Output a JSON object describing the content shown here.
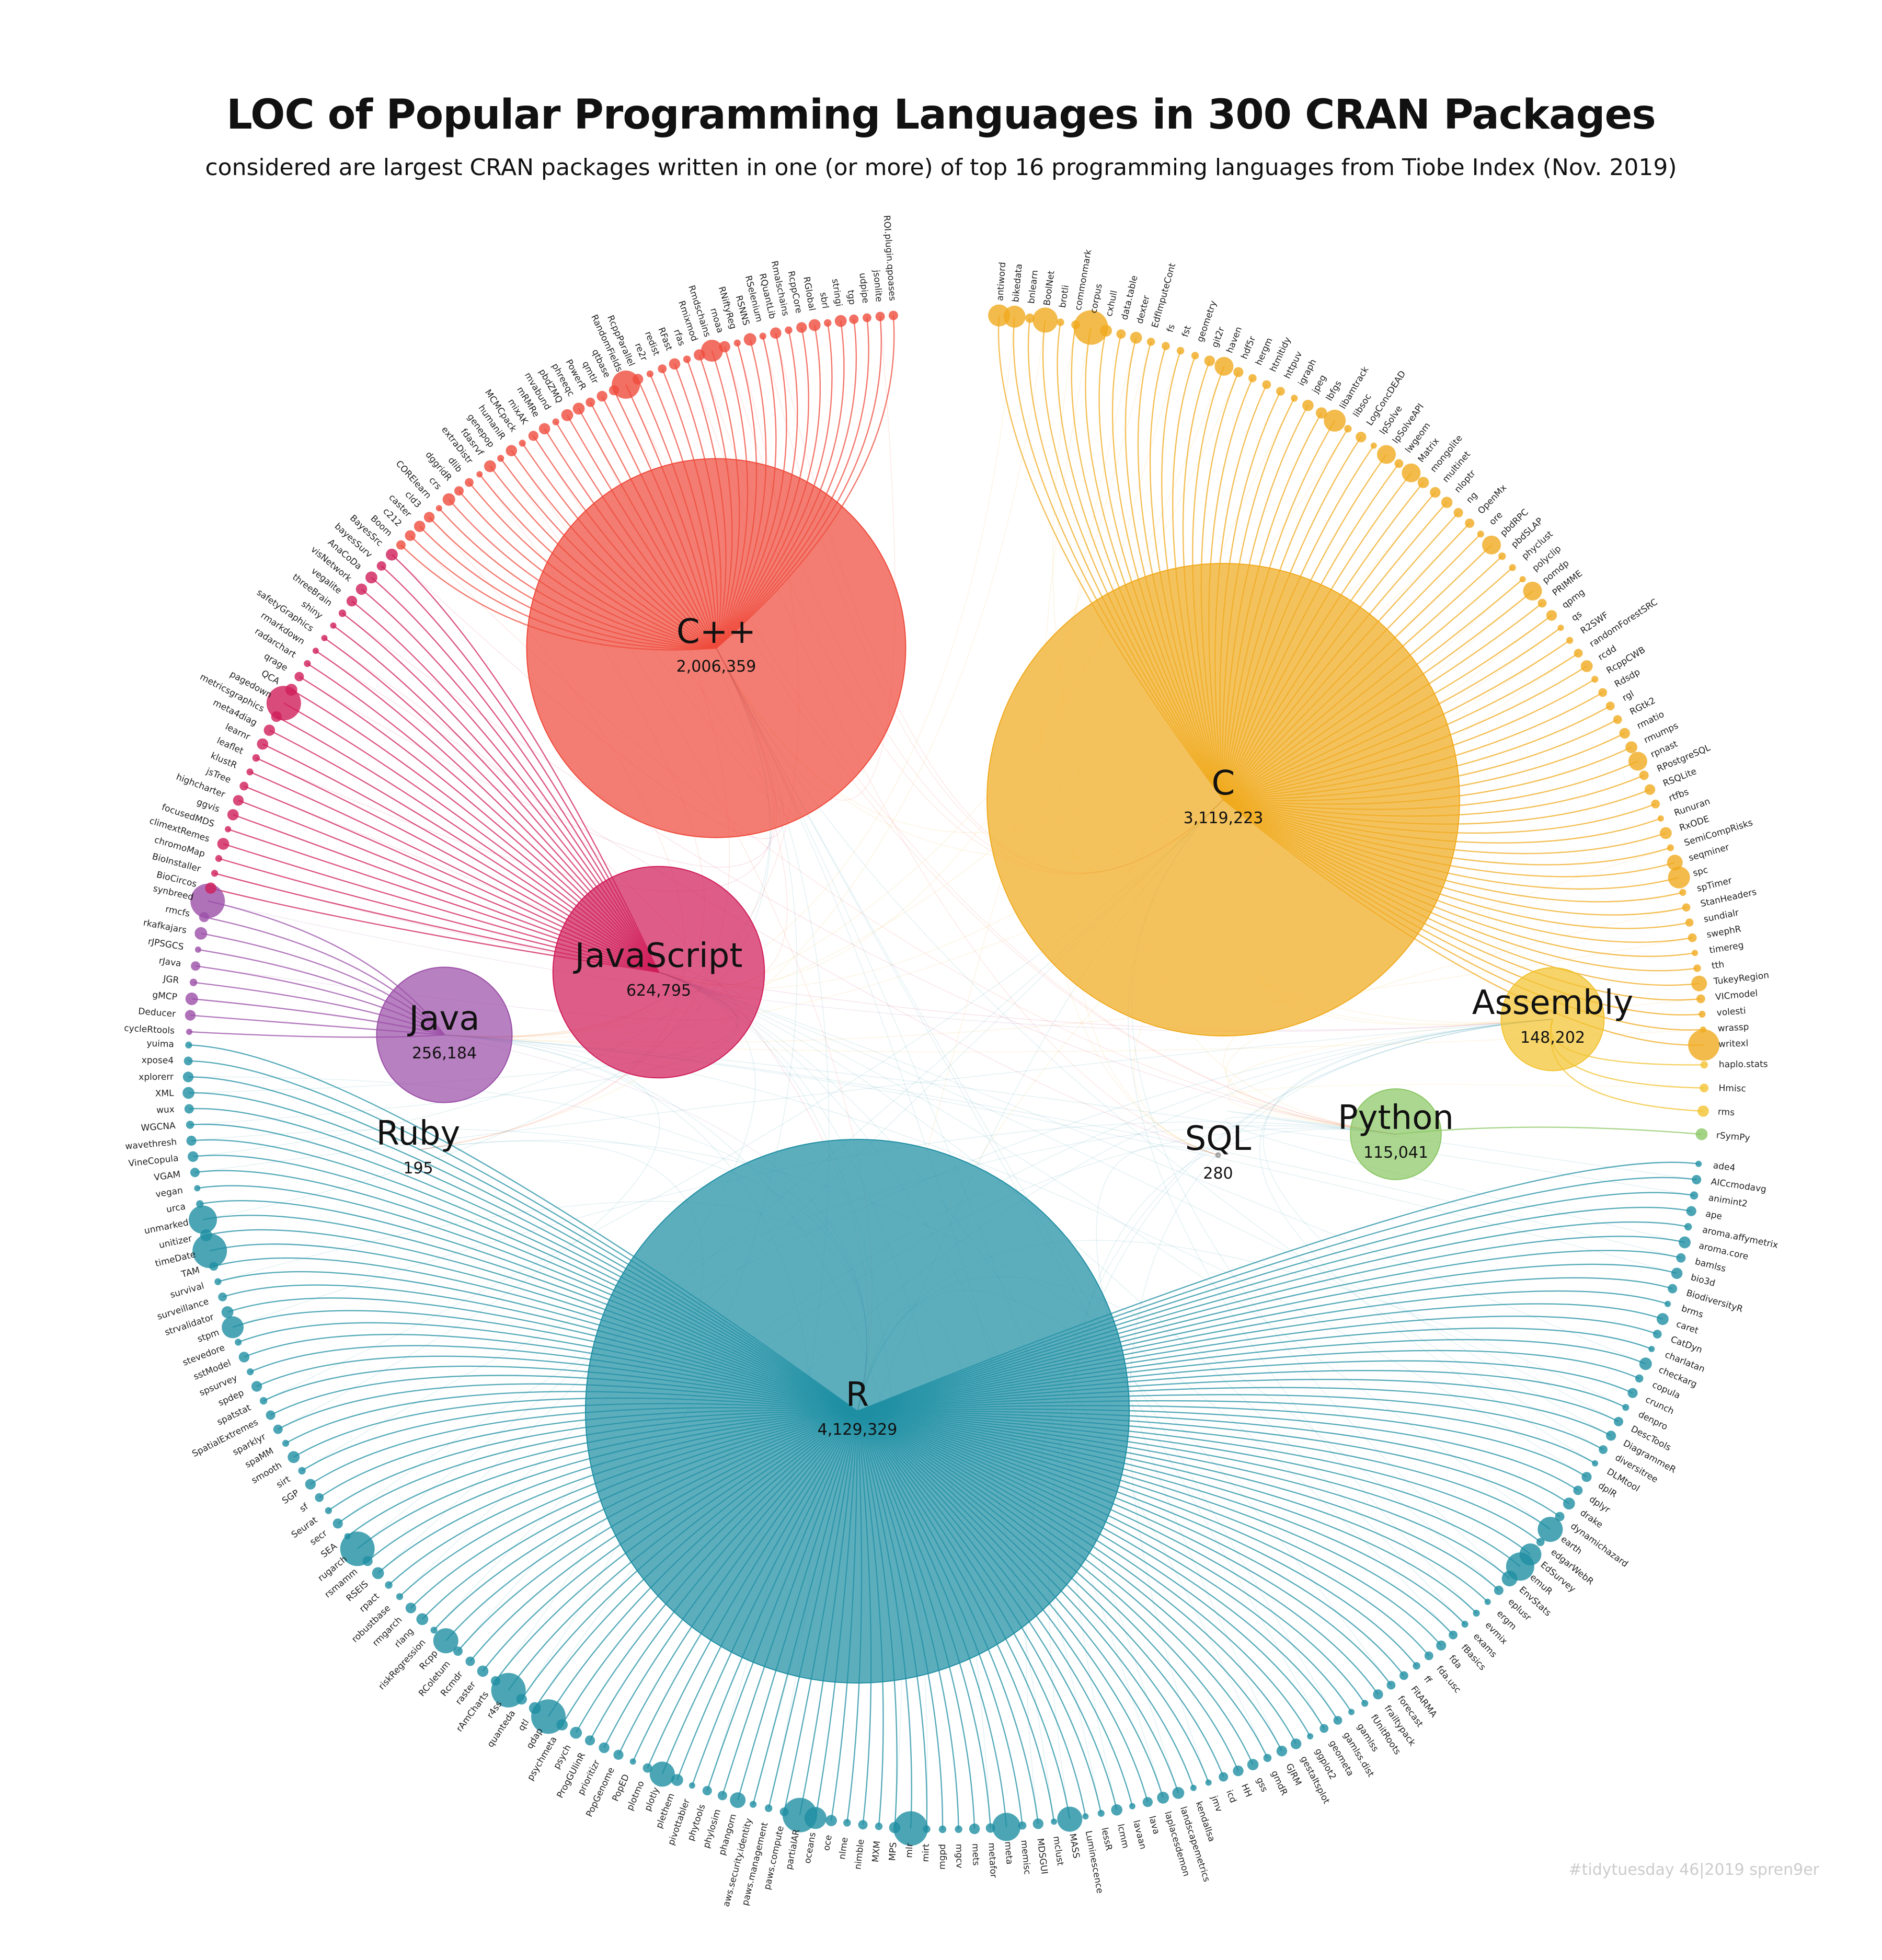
{
  "header": {
    "title": "LOC of Popular Programming Languages in 300 CRAN Packages",
    "subtitle": "considered are largest CRAN packages written in one (or more) of top 16 programming languages from Tiobe Index (Nov. 2019)"
  },
  "credit": "#tidytuesday 46|2019 spren9er",
  "colors": {
    "C": "#F0AA1E",
    "C++": "#EF4B3C",
    "JavaScript": "#D01E5A",
    "Java": "#9B4FA8",
    "R": "#1F8FA3",
    "Assembly": "#F2C331",
    "Python": "#8CC865"
  },
  "languages": [
    {
      "name": "C++",
      "loc": "2,006,359",
      "value": 2006359
    },
    {
      "name": "C",
      "loc": "3,119,223",
      "value": 3119223
    },
    {
      "name": "JavaScript",
      "loc": "624,795",
      "value": 624795
    },
    {
      "name": "Java",
      "loc": "256,184",
      "value": 256184
    },
    {
      "name": "R",
      "loc": "4,129,329",
      "value": 4129329
    },
    {
      "name": "Assembly",
      "loc": "148,202",
      "value": 148202
    },
    {
      "name": "Python",
      "loc": "115,041",
      "value": 115041
    },
    {
      "name": "Ruby",
      "loc": "195",
      "value": 195
    },
    {
      "name": "SQL",
      "loc": "280",
      "value": 280
    }
  ],
  "packages": {
    "C": [
      "antiword",
      "bikedata",
      "bnlearn",
      "BoolNet",
      "brotli",
      "commonmark",
      "corpus",
      "cxhull",
      "data.table",
      "dexter",
      "EdfImputeCont",
      "fs",
      "fst",
      "geometry",
      "git2r",
      "haven",
      "hdf5r",
      "hergm",
      "htmltidy",
      "httpuv",
      "igraph",
      "jpeg",
      "lbfgs",
      "libamtrack",
      "libsoc",
      "LogConcDEAD",
      "lpSolve",
      "lpSolveAPI",
      "lwgeom",
      "Matrix",
      "mongolite",
      "multinet",
      "nloptr",
      "ng",
      "OpenMx",
      "ore",
      "pbdRPC",
      "pbdSLAP",
      "phyclust",
      "polyclip",
      "pomdp",
      "PRIMME",
      "qpmg",
      "qs",
      "R2SWF",
      "randomForestSRC",
      "rcdd",
      "RcppCWB",
      "Rdsdp",
      "rgl",
      "RGtk2",
      "rmatio",
      "rmumps",
      "rpnast",
      "RPostgreSQL",
      "RSQLite",
      "rtfbs",
      "Runuran",
      "RxODE",
      "SemiCompRisks",
      "seqminer",
      "spc",
      "spTimer",
      "StanHeaders",
      "sundialr",
      "swephR",
      "timereg",
      "tth",
      "TukeyRegion",
      "VICmodel",
      "volesti",
      "wrassp",
      "writexl"
    ],
    "Assembly": [
      "haplo.stats",
      "Hmisc",
      "rms"
    ],
    "Python": [
      "rSymPy"
    ],
    "R": [
      "ade4",
      "AICcmodavg",
      "animint2",
      "ape",
      "aroma.affymetrix",
      "aroma.core",
      "bamlss",
      "bio3d",
      "BiodiversityR",
      "brms",
      "caret",
      "CatDyn",
      "charlatan",
      "checkarg",
      "copula",
      "crunch",
      "denpro",
      "DescTools",
      "DiagrammeR",
      "diversitree",
      "DLMtool",
      "dplR",
      "dplyr",
      "drake",
      "dynamichazard",
      "earth",
      "edgarWebR",
      "EdSurvey",
      "emuR",
      "EnvStats",
      "eplusr",
      "ergm",
      "evmix",
      "exams",
      "fBasics",
      "fda",
      "fda.usc",
      "ff",
      "FitARMA",
      "forecast",
      "frailtypack",
      "fUnitRoots",
      "gamlss",
      "gamlss.dist",
      "geometa",
      "ggplot2",
      "gestaltsplot",
      "GJRM",
      "gmdR",
      "gss",
      "HH",
      "icd",
      "jmv",
      "kendallsa",
      "landscapemetrics",
      "laplacesdemon",
      "lava",
      "lavaan",
      "lcmm",
      "lessR",
      "Luminescence",
      "MASS",
      "mclust",
      "MDSGUI",
      "memisc",
      "meta",
      "metafor",
      "mets",
      "mgcv",
      "mgpd",
      "mirt",
      "mlr",
      "MPS",
      "MXM",
      "nimble",
      "nlme",
      "oce",
      "oceans",
      "partialAR",
      "paws.compute",
      "paws.management",
      "aws.security.identity",
      "phangorn",
      "phylosim",
      "phytools",
      "pivottabler",
      "plethem",
      "plotly",
      "plotmo",
      "PopED",
      "PopGenome",
      "prioritizr",
      "ProgGUIinR",
      "psych",
      "psychmeta",
      "qdap",
      "qtl",
      "quanteda",
      "r4ss",
      "rAmCharts",
      "raster",
      "Rcmdr",
      "RColetum",
      "Rcpp",
      "riskRegression",
      "rlang",
      "rmgarch",
      "robustbase",
      "rpact",
      "RSEIS",
      "rsmamm",
      "rugarch",
      "SEA",
      "secr",
      "Seurat",
      "sf",
      "SGP",
      "sirt",
      "smooth",
      "spaMM",
      "sparklyr",
      "SpatialExtremes",
      "spatstat",
      "spdep",
      "spsurvey",
      "sstModel",
      "stevedore",
      "stpm",
      "strvalidator",
      "surveillance",
      "survival",
      "TAM",
      "timeDate",
      "unitizer",
      "unmarked",
      "urca",
      "vegan",
      "VGAM",
      "VineCopula",
      "wavethresh",
      "WGCNA",
      "wux",
      "XML",
      "xplorerr",
      "xpose4",
      "yuima"
    ],
    "Java": [
      "cycleRtools",
      "Deducer",
      "gMCP",
      "JGR",
      "rJava",
      "rJPSGCS",
      "rkafkajars",
      "rmcfs",
      "synbreed"
    ],
    "JavaScript": [
      "BioCircos",
      "BioInstaller",
      "chromoMap",
      "climextRemes",
      "focusedMDS",
      "ggvis",
      "highcharter",
      "jsTree",
      "klustR",
      "leaflet",
      "learnr",
      "meta4diag",
      "metricsgraphics",
      "pagedown",
      "QCA",
      "qrage",
      "radarchart",
      "rmarkdown",
      "safetyGraphics",
      "shiny",
      "threeBrain",
      "vegalite",
      "visNetwork",
      "AnaCoDa",
      "bayesSurv",
      "BayesSrc"
    ],
    "C++": [
      "Boom",
      "c212",
      "caster",
      "cld3",
      "CORElearn",
      "crs",
      "dggridR",
      "dlib",
      "extraDistr",
      "fdasrvf",
      "genepop",
      "humaniR",
      "MCMCpack",
      "mixAK",
      "mRMRe",
      "mvabund",
      "pbdZMQ",
      "phreeqc",
      "PowerR",
      "qmtlr",
      "qtbase",
      "RandomFields",
      "RcppParallel",
      "re2r",
      "redist",
      "RFast",
      "rfas",
      "Rmixmod",
      "Rmdschains",
      "rnoaa",
      "RNiftyReg",
      "RSNNS",
      "RSelenium",
      "RQuantLib",
      "Rmalschains",
      "RcppCore",
      "RGlobal",
      "sbrl",
      "stringi",
      "tgp",
      "udpipe",
      "jsonlite",
      "ROI.plugin.qpoases"
    ]
  }
}
